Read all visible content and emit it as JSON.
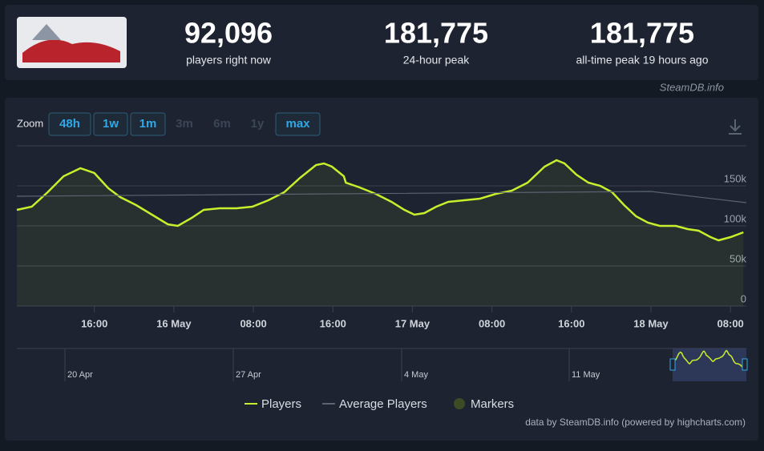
{
  "header": {
    "stats": [
      {
        "value": "92,096",
        "label": "players right now"
      },
      {
        "value": "181,775",
        "label": "24-hour peak"
      },
      {
        "value": "181,775",
        "label": "all-time peak 19 hours ago"
      }
    ],
    "site": "SteamDB.info"
  },
  "zoom": {
    "label": "Zoom",
    "buttons": [
      {
        "text": "48h",
        "enabled": true
      },
      {
        "text": "1w",
        "enabled": true
      },
      {
        "text": "1m",
        "enabled": true
      },
      {
        "text": "3m",
        "enabled": false
      },
      {
        "text": "6m",
        "enabled": false
      },
      {
        "text": "1y",
        "enabled": false
      },
      {
        "text": "max",
        "enabled": true
      }
    ]
  },
  "chart_data": {
    "type": "line",
    "xlim": [
      8.2,
      81.6
    ],
    "ylim": [
      0,
      200000
    ],
    "xticks": [
      {
        "value": 16,
        "label": "16:00"
      },
      {
        "value": 24,
        "label": "16 May"
      },
      {
        "value": 32,
        "label": "08:00"
      },
      {
        "value": 40,
        "label": "16:00"
      },
      {
        "value": 48,
        "label": "17 May"
      },
      {
        "value": 56,
        "label": "08:00"
      },
      {
        "value": 64,
        "label": "16:00"
      },
      {
        "value": 72,
        "label": "18 May"
      },
      {
        "value": 80,
        "label": "08:00"
      }
    ],
    "yticks": [
      0,
      {
        "value": 50000,
        "label": "50k"
      },
      {
        "value": 100000,
        "label": "100k"
      },
      {
        "value": 150000,
        "label": "150k"
      }
    ],
    "grid": true,
    "series": [
      {
        "name": "Players",
        "color": "#c8ee2c",
        "x": [
          8.2,
          9.7,
          11.3,
          12.9,
          14.6,
          16.0,
          17.4,
          18.6,
          20.2,
          21.8,
          23.4,
          24.4,
          25.8,
          27.0,
          28.6,
          30.3,
          31.9,
          33.5,
          35.1,
          36.7,
          38.3,
          39.1,
          39.9,
          41.1,
          41.3,
          42.7,
          44.3,
          45.9,
          47.2,
          48.2,
          49.2,
          50.4,
          51.6,
          53.2,
          54.8,
          56.4,
          58.0,
          59.6,
          61.3,
          62.5,
          63.3,
          64.5,
          65.7,
          66.9,
          68.1,
          69.3,
          70.5,
          71.7,
          72.9,
          74.5,
          75.7,
          76.8,
          78.0,
          78.8,
          80.0,
          81.3
        ],
        "values": [
          120000,
          124000,
          142000,
          162000,
          172000,
          166000,
          147000,
          136000,
          126000,
          114000,
          102000,
          100000,
          110000,
          120000,
          122000,
          122000,
          124000,
          132000,
          142000,
          160000,
          176000,
          178000,
          174000,
          162000,
          154000,
          148000,
          140000,
          130000,
          120000,
          114000,
          116000,
          124000,
          130000,
          132000,
          134000,
          140000,
          144000,
          154000,
          174000,
          182000,
          178000,
          164000,
          154000,
          150000,
          142000,
          126000,
          112000,
          104000,
          100000,
          100000,
          96000,
          94000,
          86000,
          82000,
          86000,
          92000
        ]
      },
      {
        "name": "Average Players",
        "color": "#5a6472",
        "x": [
          8.2,
          72,
          81.6
        ],
        "values": [
          137000,
          143000,
          129000
        ]
      },
      {
        "name": "Markers",
        "color": "#3c4c24"
      }
    ]
  },
  "navigator": {
    "labels": [
      "20 Apr",
      "27 Apr",
      "4 May",
      "11 May"
    ]
  },
  "credit": "data by SteamDB.info (powered by highcharts.com)"
}
